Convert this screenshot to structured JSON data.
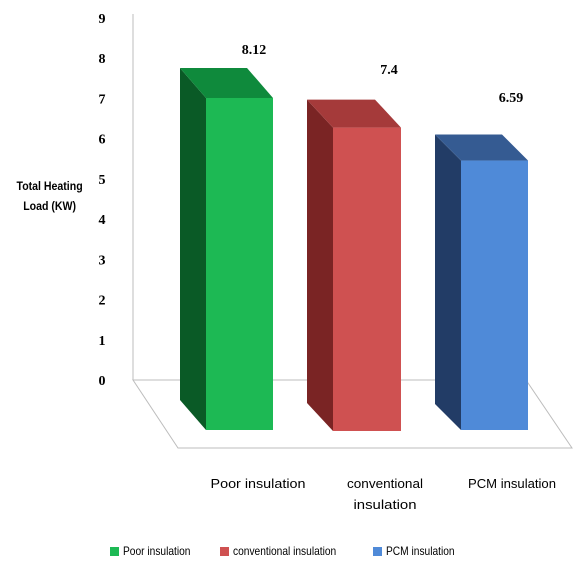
{
  "chart_data": {
    "type": "bar",
    "categories": [
      "Poor insulation",
      "conventional insulation",
      "PCM insulation"
    ],
    "values": [
      8.12,
      7.4,
      6.59
    ],
    "value_labels": [
      "8.12",
      "7.4",
      "6.59"
    ],
    "ylabel": "Total Heating Load (KW)",
    "xlabel": "",
    "ylim": [
      0,
      9
    ],
    "yticks": [
      "0",
      "1",
      "2",
      "3",
      "4",
      "5",
      "6",
      "7",
      "8",
      "9"
    ],
    "category_labels": [
      [
        "Poor insulation"
      ],
      [
        "conventional",
        "insulation"
      ],
      [
        "PCM insulation"
      ]
    ],
    "colors": [
      "#1db954",
      "#cf5151",
      "#4f8ad8"
    ],
    "side_colors": [
      "#0a5a26",
      "#7a2424",
      "#223c66"
    ],
    "top_colors": [
      "#0f8a3c",
      "#a53a3a",
      "#355b92"
    ],
    "legend": {
      "placement": "bottom",
      "entries": [
        "Poor insulation",
        "conventional insulation",
        "PCM insulation"
      ]
    },
    "grid": false,
    "style": "3d-clustered-column"
  }
}
